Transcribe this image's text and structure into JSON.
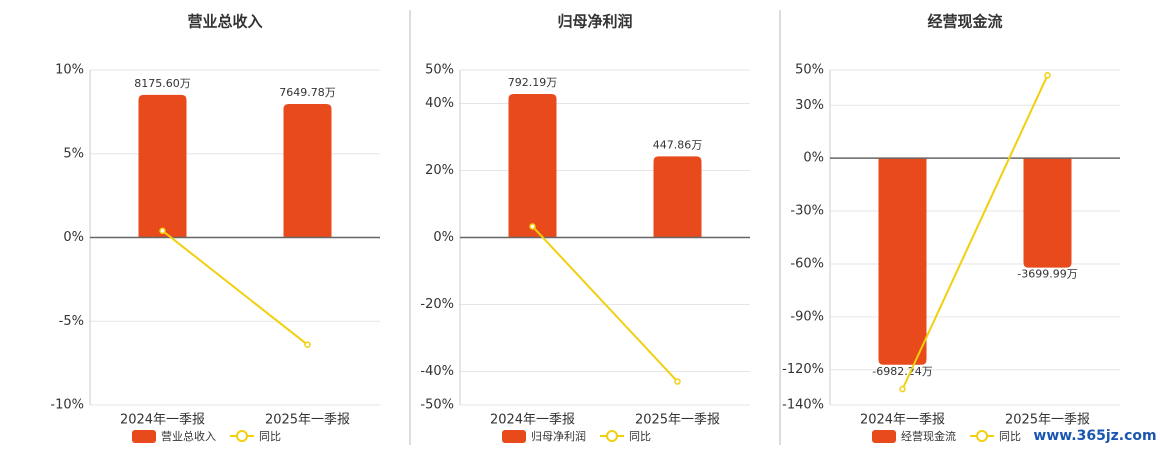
{
  "chart_data": [
    {
      "type": "combo",
      "title": "营业总收入",
      "categories": [
        "2024年一季报",
        "2025年一季报"
      ],
      "series": [
        {
          "name": "营业总收入",
          "color": "#e84a1c",
          "axis": "y2",
          "values": [
            8175.6,
            7649.78
          ],
          "value_labels": [
            "8175.60万",
            "7649.78万"
          ]
        },
        {
          "name": "同比",
          "color": "#f2cf0f",
          "values": [
            0.4,
            -6.4
          ]
        }
      ],
      "ylim": [
        -10,
        10
      ],
      "yticks": [
        {
          "value": 10,
          "label": "10%"
        },
        {
          "value": 5,
          "label": "5%"
        },
        {
          "value": 0,
          "label": "0%"
        },
        {
          "value": -5,
          "label": "-5%"
        },
        {
          "value": -10,
          "label": "-10%"
        }
      ],
      "y2lim": [
        -9600,
        9600
      ],
      "grid": true
    },
    {
      "type": "combo",
      "title": "归母净利润",
      "categories": [
        "2024年一季报",
        "2025年一季报"
      ],
      "series": [
        {
          "name": "归母净利润",
          "color": "#e84a1c",
          "axis": "y2",
          "values": [
            792.19,
            447.86
          ],
          "value_labels": [
            "792.19万",
            "447.86万"
          ]
        },
        {
          "name": "同比",
          "color": "#f2cf0f",
          "values": [
            3.3,
            -43
          ]
        }
      ],
      "ylim": [
        -50,
        50
      ],
      "yticks": [
        {
          "value": 50,
          "label": "50%"
        },
        {
          "value": 40,
          "label": "40%"
        },
        {
          "value": 20,
          "label": "20%"
        },
        {
          "value": 0,
          "label": "0%"
        },
        {
          "value": -20,
          "label": "-20%"
        },
        {
          "value": -40,
          "label": "-40%"
        },
        {
          "value": -50,
          "label": "-50%"
        }
      ],
      "y2lim": [
        -925,
        925
      ],
      "grid": true
    },
    {
      "type": "combo",
      "title": "经营现金流",
      "categories": [
        "2024年一季报",
        "2025年一季报"
      ],
      "series": [
        {
          "name": "经营现金流",
          "color": "#e84a1c",
          "axis": "y2",
          "values": [
            -6982.24,
            -3699.99
          ],
          "value_labels": [
            "-6982.24万",
            "-3699.99万"
          ]
        },
        {
          "name": "同比",
          "color": "#f2cf0f",
          "values": [
            -131,
            47
          ]
        }
      ],
      "ylim": [
        -140,
        50
      ],
      "yticks": [
        {
          "value": 50,
          "label": "50%"
        },
        {
          "value": 30,
          "label": "30%"
        },
        {
          "value": 0,
          "label": "0%"
        },
        {
          "value": -30,
          "label": "-30%"
        },
        {
          "value": -60,
          "label": "-60%"
        },
        {
          "value": -90,
          "label": "-90%"
        },
        {
          "value": -120,
          "label": "-120%"
        },
        {
          "value": -140,
          "label": "-140%"
        }
      ],
      "y2lim": [
        -8340,
        2970
      ],
      "grid": true
    }
  ],
  "watermark": "www.365jz.com"
}
